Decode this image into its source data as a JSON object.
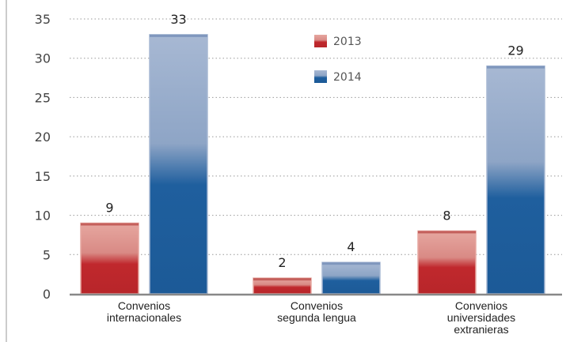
{
  "chart_data": {
    "type": "bar",
    "categories": [
      [
        "Convenios",
        "internacionales"
      ],
      [
        "Convenios",
        "segunda lengua"
      ],
      [
        "Convenios",
        "universidades",
        "extranieras"
      ]
    ],
    "series": [
      {
        "name": "2013",
        "values": [
          9,
          2,
          8
        ],
        "color": "#c0282d",
        "color_light": "#e6a7a0"
      },
      {
        "name": "2014",
        "values": [
          33,
          4,
          29
        ],
        "color": "#1f5f9e",
        "color_light": "#a7b8d3"
      }
    ],
    "data_labels": [
      [
        "9",
        "2",
        "8"
      ],
      [
        "33",
        "4",
        "29"
      ]
    ],
    "ylim": [
      0,
      35
    ],
    "yticks": [
      0,
      5,
      10,
      15,
      20,
      25,
      30,
      35
    ],
    "grid": "dotted horizontal",
    "legend_placement": "top-center"
  }
}
